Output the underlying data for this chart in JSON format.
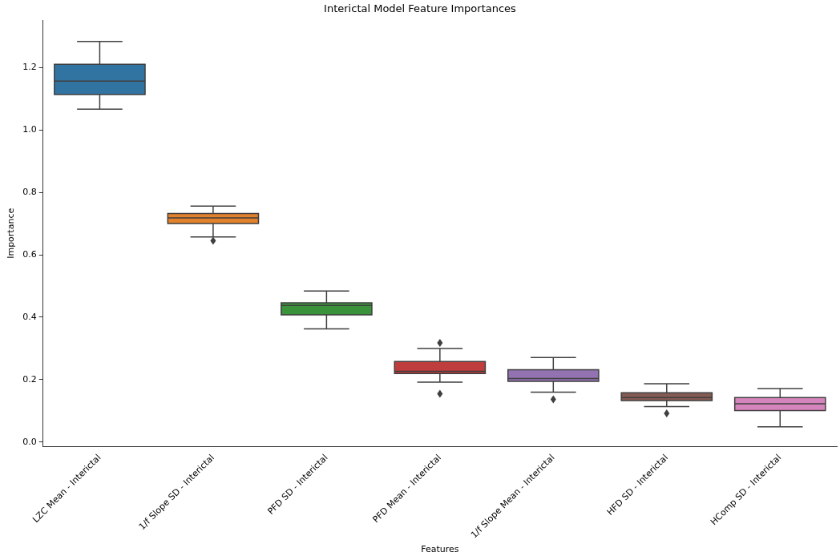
{
  "chart_data": {
    "type": "box",
    "title": "Interictal Model Feature Importances",
    "xlabel": "Features",
    "ylabel": "Importance",
    "categories": [
      "LZC Mean - Interictal",
      "1/f Slope SD - Interictal",
      "PFD SD - Interictal",
      "PFD Mean - Interictal",
      "1/f Slope Mean - Interictal",
      "HFD SD - Interictal",
      "HComp SD - Interictal"
    ],
    "colors": [
      "#3274a1",
      "#e1812c",
      "#3a923a",
      "#c03d3e",
      "#9372b2",
      "#845b53",
      "#d684bd"
    ],
    "boxes": [
      {
        "low": 1.066,
        "q1": 1.113,
        "median": 1.156,
        "q3": 1.21,
        "high": 1.283
      },
      {
        "low": 0.657,
        "q1": 0.7,
        "median": 0.718,
        "q3": 0.732,
        "high": 0.756,
        "outliers": [
          0.645
        ]
      },
      {
        "low": 0.363,
        "q1": 0.408,
        "median": 0.438,
        "q3": 0.446,
        "high": 0.484
      },
      {
        "low": 0.192,
        "q1": 0.22,
        "median": 0.227,
        "q3": 0.258,
        "high": 0.3,
        "outliers": [
          0.318,
          0.155
        ]
      },
      {
        "low": 0.16,
        "q1": 0.195,
        "median": 0.204,
        "q3": 0.232,
        "high": 0.271,
        "outliers": [
          0.137
        ]
      },
      {
        "low": 0.114,
        "q1": 0.133,
        "median": 0.143,
        "q3": 0.158,
        "high": 0.187,
        "outliers": [
          0.092
        ]
      },
      {
        "low": 0.049,
        "q1": 0.101,
        "median": 0.123,
        "q3": 0.143,
        "high": 0.172
      }
    ],
    "ylim": [
      -0.013,
      1.35
    ],
    "yticks": [
      {
        "value": 0,
        "label": "0.0"
      },
      {
        "value": 0.2,
        "label": "0.2"
      },
      {
        "value": 0.4,
        "label": "0.4"
      },
      {
        "value": 0.6,
        "label": "0.6"
      },
      {
        "value": 0.8,
        "label": "0.8"
      },
      {
        "value": 1,
        "label": "1.0"
      },
      {
        "value": 1.2,
        "label": "1.2"
      }
    ],
    "grid": false,
    "legend": false
  }
}
